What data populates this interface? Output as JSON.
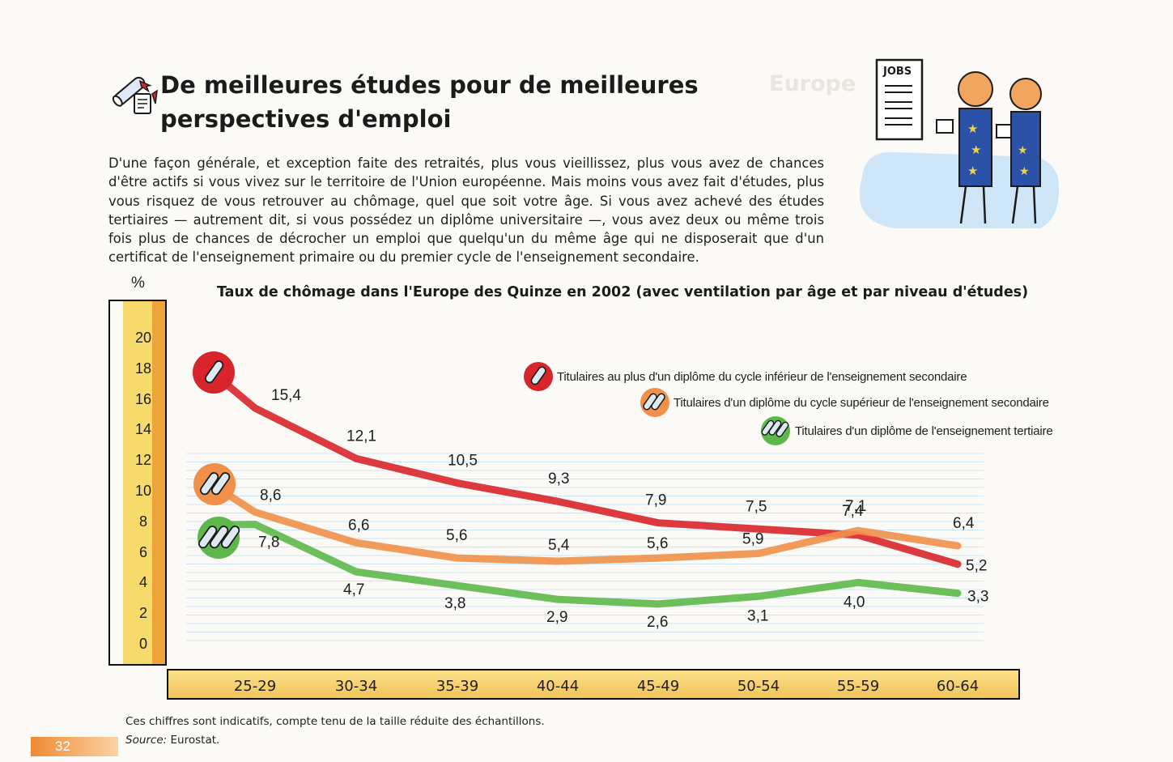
{
  "page": {
    "title": "De meilleures études pour de meilleures perspectives d'emploi",
    "intro": "D'une façon générale, et exception faite des retraités, plus vous vieillissez, plus vous avez de chances d'être actifs si vous vivez sur le territoire de l'Union européenne. Mais moins vous avez fait d'études, plus vous risquez de vous retrouver au chômage, quel que soit votre âge. Si vous avez achevé des études tertiaires — autrement dit, si vous possédez un diplôme universitaire —, vous avez deux ou même trois fois plus de chances de décrocher un emploi que quelqu'un du même âge qui ne disposerait que d'un certificat de l'enseignement primaire ou du premier cycle de l'enseignement secondaire.",
    "illustration_sign": "JOBS",
    "footnote": "Ces chiffres sont indicatifs, compte tenu de la taille réduite des échantillons.",
    "source_label": "Source:",
    "source_value": "Eurostat.",
    "page_number": "32"
  },
  "chart_data": {
    "type": "line",
    "title": "Taux de chômage dans l'Europe des Quinze en 2002 (avec ventilation par âge et par niveau d'études)",
    "ylabel": "%",
    "xlabel": "",
    "ylim": [
      0,
      20
    ],
    "yticks": [
      "0",
      "2",
      "4",
      "6",
      "8",
      "10",
      "12",
      "14",
      "16",
      "18",
      "20"
    ],
    "categories": [
      "25-29",
      "30-34",
      "35-39",
      "40-44",
      "45-49",
      "50-54",
      "55-59",
      "60-64"
    ],
    "series": [
      {
        "name": "Titulaires au plus d'un diplôme du cycle inférieur de l'enseignement secondaire",
        "color": "#d8252b",
        "values": [
          15.4,
          12.1,
          10.5,
          9.3,
          7.9,
          7.5,
          7.1,
          5.2
        ],
        "labels": [
          "15,4",
          "12,1",
          "10,5",
          "9,3",
          "7,9",
          "7,5",
          "7,1",
          "5,2"
        ]
      },
      {
        "name": "Titulaires d'un diplôme du cycle supérieur de l'enseignement secondaire",
        "color": "#f0904a",
        "values": [
          8.6,
          6.6,
          5.6,
          5.4,
          5.6,
          5.9,
          7.4,
          6.4
        ],
        "labels": [
          "8,6",
          "6,6",
          "5,6",
          "5,4",
          "5,6",
          "5,9",
          "7,4",
          "6,4"
        ]
      },
      {
        "name": "Titulaires d'un diplôme de l'enseignement tertiaire",
        "color": "#5cb84a",
        "values": [
          7.8,
          4.7,
          3.8,
          2.9,
          2.6,
          3.1,
          4.0,
          3.3
        ],
        "labels": [
          "7,8",
          "4,7",
          "3,8",
          "2,9",
          "2,6",
          "3,1",
          "4,0",
          "3,3"
        ]
      }
    ],
    "grid": true,
    "legend_position": "top-right"
  }
}
